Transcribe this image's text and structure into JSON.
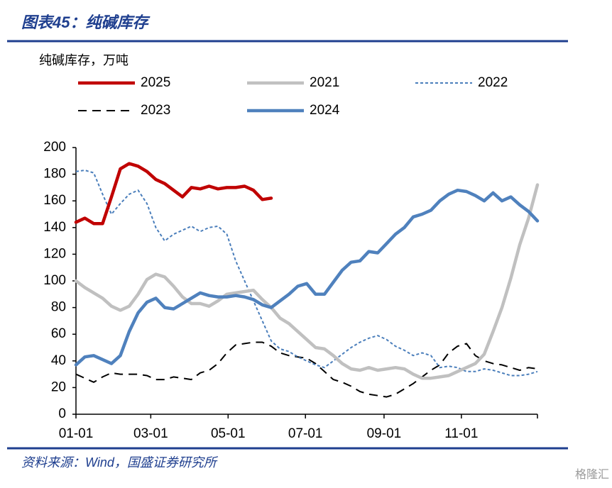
{
  "chart_data": {
    "type": "line",
    "title": "图表45：纯碱库存",
    "y_label": "纯碱库存，万吨",
    "source": "资料来源：Wind，国盛证券研究所",
    "watermark": "格隆汇",
    "x": [
      0,
      7,
      14,
      21,
      28,
      35,
      42,
      49,
      56,
      63,
      70,
      77,
      84,
      91,
      98,
      105,
      112,
      119,
      126,
      133,
      140,
      147,
      154,
      161,
      168,
      175,
      182,
      189,
      196,
      203,
      210,
      217,
      224,
      231,
      238,
      245,
      252,
      259,
      266,
      273,
      280,
      287,
      294,
      301,
      308,
      315,
      322,
      329,
      336,
      343,
      350,
      357,
      364
    ],
    "xlim": [
      0,
      364
    ],
    "xticks": [
      {
        "value": 0,
        "label": "01-01"
      },
      {
        "value": 59,
        "label": "03-01"
      },
      {
        "value": 120,
        "label": "05-01"
      },
      {
        "value": 181,
        "label": "07-01"
      },
      {
        "value": 243,
        "label": "09-01"
      },
      {
        "value": 304,
        "label": "11-01"
      }
    ],
    "ylim": [
      0,
      200
    ],
    "yticks": [
      0,
      20,
      40,
      60,
      80,
      100,
      120,
      140,
      160,
      180,
      200
    ],
    "grid": false,
    "series": [
      {
        "name": "2025",
        "color": "#c00000",
        "style": "solid",
        "values": [
          144,
          147,
          143,
          143,
          163,
          184,
          188,
          186,
          182,
          176,
          173,
          168,
          163,
          170,
          169,
          171,
          169,
          170,
          170,
          171,
          168,
          161,
          162,
          null,
          null,
          null,
          null,
          null,
          null,
          null,
          null,
          null,
          null,
          null,
          null,
          null,
          null,
          null,
          null,
          null,
          null,
          null,
          null,
          null,
          null,
          null,
          null,
          null,
          null,
          null,
          null,
          null,
          null
        ]
      },
      {
        "name": "2021",
        "color": "#c0c0c0",
        "style": "solid",
        "values": [
          100,
          95,
          91,
          87,
          81,
          78,
          81,
          90,
          101,
          105,
          103,
          96,
          88,
          83,
          83,
          81,
          85,
          90,
          91,
          92,
          93,
          86,
          80,
          72,
          68,
          62,
          56,
          50,
          49,
          44,
          38,
          34,
          33,
          35,
          33,
          34,
          35,
          34,
          30,
          27,
          27,
          28,
          29,
          32,
          35,
          38,
          45,
          62,
          80,
          102,
          127,
          147,
          172
        ]
      },
      {
        "name": "2022",
        "color": "#4a7ebb",
        "style": "dotted",
        "values": [
          182,
          183,
          181,
          165,
          150,
          158,
          165,
          168,
          158,
          140,
          130,
          135,
          138,
          141,
          137,
          140,
          141,
          135,
          115,
          100,
          85,
          70,
          55,
          49,
          47,
          43,
          40,
          37,
          35,
          40,
          45,
          50,
          54,
          57,
          59,
          56,
          51,
          48,
          44,
          46,
          44,
          35,
          36,
          35,
          32,
          32,
          34,
          33,
          31,
          29,
          29,
          30,
          32
        ]
      },
      {
        "name": "2023",
        "color": "#000000",
        "style": "dashed",
        "values": [
          30,
          27,
          24,
          28,
          31,
          30,
          30,
          30,
          29,
          26,
          26,
          28,
          27,
          26,
          31,
          33,
          38,
          46,
          52,
          53,
          54,
          54,
          51,
          46,
          44,
          43,
          42,
          38,
          32,
          26,
          24,
          21,
          17,
          15,
          14,
          13,
          15,
          19,
          23,
          28,
          33,
          37,
          46,
          51,
          53,
          44,
          40,
          38,
          37,
          35,
          33,
          35,
          34
        ]
      },
      {
        "name": "2024",
        "color": "#4f81bd",
        "style": "solid",
        "values": [
          37,
          43,
          44,
          41,
          38,
          44,
          62,
          76,
          84,
          87,
          80,
          79,
          83,
          87,
          91,
          89,
          88,
          88,
          89,
          88,
          86,
          82,
          80,
          85,
          90,
          96,
          98,
          90,
          90,
          99,
          108,
          114,
          115,
          122,
          121,
          128,
          135,
          140,
          148,
          150,
          153,
          160,
          165,
          168,
          167,
          164,
          160,
          166,
          160,
          163,
          157,
          152,
          145
        ]
      }
    ]
  }
}
